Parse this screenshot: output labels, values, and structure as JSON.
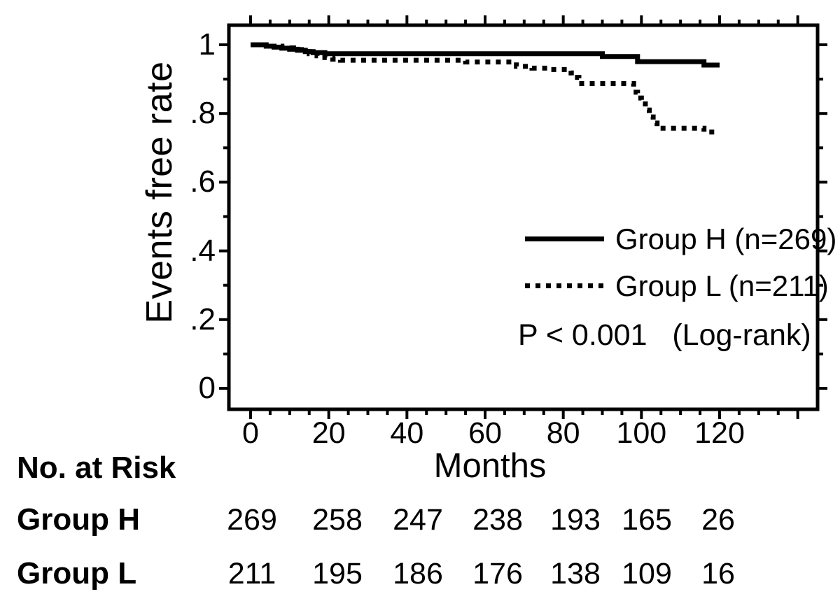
{
  "chart_data": {
    "type": "line",
    "subtype": "kaplan-meier-step",
    "title": "",
    "xlabel": "Months",
    "ylabel": "Events free rate",
    "x_ticks": [
      0,
      20,
      40,
      60,
      80,
      100,
      120
    ],
    "x_minor_step": 5,
    "x_last_major_unlabeled": 140,
    "xlim": [
      0,
      145
    ],
    "y_ticks": [
      {
        "value": 1.0,
        "label": "1"
      },
      {
        "value": 0.8,
        "label": ".8"
      },
      {
        "value": 0.6,
        "label": ".6"
      },
      {
        "value": 0.4,
        "label": ".4"
      },
      {
        "value": 0.2,
        "label": ".2"
      },
      {
        "value": 0.0,
        "label": "0"
      }
    ],
    "y_minor_step": 0.1,
    "ylim": [
      0,
      1.05
    ],
    "grid": false,
    "legend_position": "inside-right-middle",
    "series": [
      {
        "name": "Group H",
        "n": 269,
        "line_style": "solid",
        "points": [
          [
            0,
            1.0
          ],
          [
            4,
            0.996
          ],
          [
            6,
            0.993
          ],
          [
            8,
            0.99
          ],
          [
            10,
            0.987
          ],
          [
            12,
            0.984
          ],
          [
            14,
            0.98
          ],
          [
            16,
            0.977
          ],
          [
            19,
            0.974
          ],
          [
            90,
            0.966
          ],
          [
            99,
            0.951
          ],
          [
            116,
            0.941
          ],
          [
            120,
            0.941
          ]
        ]
      },
      {
        "name": "Group L",
        "n": 211,
        "line_style": "dotted",
        "points": [
          [
            0,
            1.0
          ],
          [
            5,
            0.996
          ],
          [
            8,
            0.991
          ],
          [
            11,
            0.986
          ],
          [
            13,
            0.98
          ],
          [
            15,
            0.974
          ],
          [
            17,
            0.968
          ],
          [
            19,
            0.963
          ],
          [
            21,
            0.958
          ],
          [
            23,
            0.955
          ],
          [
            55,
            0.95
          ],
          [
            68,
            0.937
          ],
          [
            72,
            0.932
          ],
          [
            76,
            0.928
          ],
          [
            82,
            0.918
          ],
          [
            83,
            0.905
          ],
          [
            84,
            0.887
          ],
          [
            98,
            0.862
          ],
          [
            99,
            0.845
          ],
          [
            100,
            0.828
          ],
          [
            101,
            0.81
          ],
          [
            102,
            0.79
          ],
          [
            103,
            0.772
          ],
          [
            104,
            0.757
          ],
          [
            116,
            0.746
          ],
          [
            120,
            0.746
          ]
        ]
      }
    ],
    "legend": [
      {
        "label": "Group H (n=269)",
        "swatch": "solid-line"
      },
      {
        "label": "Group L (n=211)",
        "swatch": "dotted-line"
      }
    ],
    "annotation": "P < 0.001   (Log-rank)",
    "at_risk_table": {
      "header": "No. at Risk",
      "months": [
        0,
        20,
        40,
        60,
        80,
        100,
        120
      ],
      "rows": [
        {
          "label": "Group H",
          "values": [
            269,
            258,
            247,
            238,
            193,
            165,
            26
          ]
        },
        {
          "label": "Group L",
          "values": [
            211,
            195,
            186,
            176,
            138,
            109,
            16
          ]
        }
      ]
    },
    "colors": {
      "line": "#000000",
      "background": "#ffffff"
    }
  }
}
